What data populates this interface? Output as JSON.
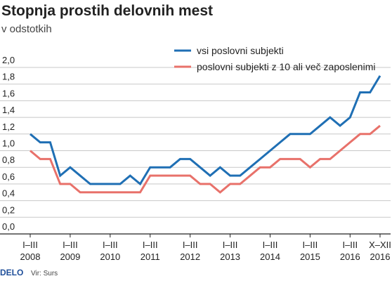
{
  "chart_data": {
    "type": "line",
    "title": "Stopnja prostih delovnih mest",
    "subtitle": "v odstotkih",
    "brand": "DELO",
    "source": "Vir: Surs",
    "categories": [
      "I–III",
      null,
      null,
      null,
      "I–III",
      null,
      null,
      null,
      "I–III",
      null,
      null,
      null,
      "I–III",
      null,
      null,
      null,
      "I–III",
      null,
      null,
      null,
      "I–III",
      null,
      null,
      null,
      "I–III",
      null,
      null,
      null,
      "I–III",
      null,
      null,
      null,
      "I–III",
      null,
      null,
      "X–XII"
    ],
    "years": [
      "2008",
      null,
      null,
      null,
      "2009",
      null,
      null,
      null,
      "2010",
      null,
      null,
      null,
      "2011",
      null,
      null,
      null,
      "2012",
      null,
      null,
      null,
      "2013",
      null,
      null,
      null,
      "2014",
      null,
      null,
      null,
      "2015",
      null,
      null,
      null,
      "2016",
      null,
      null,
      "2016"
    ],
    "series": [
      {
        "name": "vsi poslovni subjekti",
        "color": "#1f6fb4",
        "values": [
          1.2,
          1.1,
          1.1,
          0.7,
          0.8,
          0.7,
          0.6,
          0.6,
          0.6,
          0.6,
          0.7,
          0.6,
          0.8,
          0.8,
          0.8,
          0.9,
          0.9,
          0.8,
          0.7,
          0.8,
          0.7,
          0.7,
          0.8,
          0.9,
          1.0,
          1.1,
          1.2,
          1.2,
          1.2,
          1.3,
          1.4,
          1.3,
          1.4,
          1.7,
          1.7,
          1.9
        ]
      },
      {
        "name": "poslovni subjekti z 10 ali več zaposlenimi",
        "color": "#e8716a",
        "values": [
          1.0,
          0.9,
          0.9,
          0.6,
          0.6,
          0.5,
          0.5,
          0.5,
          0.5,
          0.5,
          0.5,
          0.5,
          0.7,
          0.7,
          0.7,
          0.7,
          0.7,
          0.6,
          0.6,
          0.5,
          0.6,
          0.6,
          0.7,
          0.8,
          0.8,
          0.9,
          0.9,
          0.9,
          0.8,
          0.9,
          0.9,
          1.0,
          1.1,
          1.2,
          1.2,
          1.3
        ]
      }
    ],
    "ylim": [
      0,
      2.0
    ],
    "yticks": [
      {
        "value": 0,
        "label": "0,0"
      },
      {
        "value": 0.2,
        "label": "0,2"
      },
      {
        "value": 0.4,
        "label": "0,4"
      },
      {
        "value": 0.6,
        "label": "0,6"
      },
      {
        "value": 0.8,
        "label": "0,8"
      },
      {
        "value": 1.0,
        "label": "1,0"
      },
      {
        "value": 1.2,
        "label": "1,2"
      },
      {
        "value": 1.4,
        "label": "1,4"
      },
      {
        "value": 1.6,
        "label": "1,6"
      },
      {
        "value": 1.8,
        "label": "1,8"
      },
      {
        "value": 2.0,
        "label": "2,0"
      }
    ],
    "grid": true
  }
}
